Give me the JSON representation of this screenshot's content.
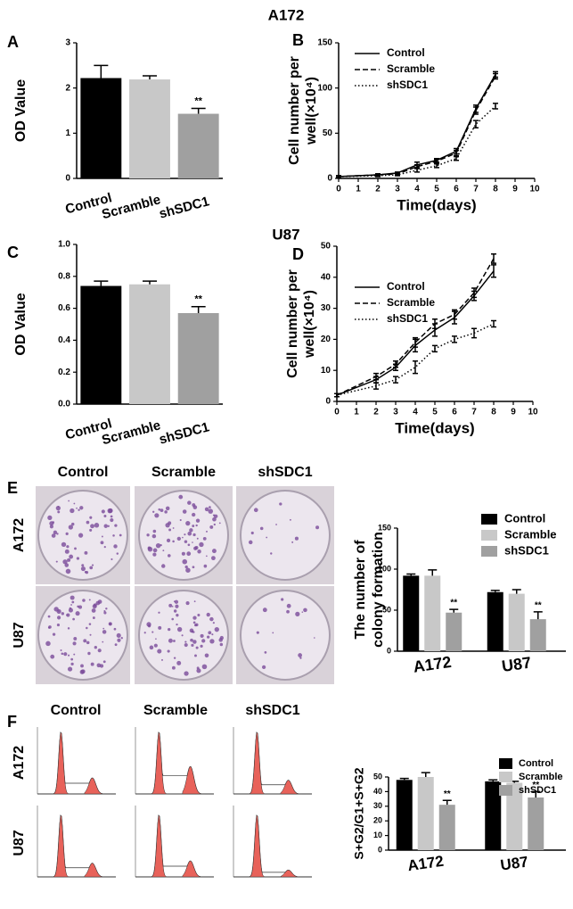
{
  "figure": {
    "sections": [
      "A172",
      "U87"
    ],
    "panel_labels": [
      "A",
      "B",
      "C",
      "D",
      "E",
      "F"
    ],
    "image_columns": [
      "Control",
      "Scramble",
      "shSDC1"
    ],
    "image_rows": [
      "A172",
      "U87"
    ]
  },
  "chart_data": [
    {
      "type": "bar",
      "ylabel": "OD Value",
      "categories": [
        "Control",
        "Scramble",
        "shSDC1"
      ],
      "colors": [
        "#000000",
        "#c8c8c8",
        "#a0a0a0"
      ],
      "values": [
        2.22,
        2.19,
        1.43
      ],
      "errors": [
        0.28,
        0.08,
        0.12
      ],
      "significance": [
        null,
        null,
        "**"
      ],
      "ylim": [
        0,
        3
      ],
      "yticks": [
        0,
        1,
        2,
        3
      ]
    },
    {
      "type": "line",
      "xlabel": "Time(days)",
      "ylabel": "Cell number per well(×10⁴)",
      "x": [
        0,
        2,
        3,
        4,
        5,
        6,
        7,
        8
      ],
      "legend": "upper left",
      "series": [
        {
          "name": "Control",
          "color": "#000000",
          "dash": "solid",
          "values": [
            2,
            4,
            6,
            15,
            20,
            30,
            77,
            115
          ],
          "errors": [
            1,
            1,
            1,
            3,
            2,
            3,
            4,
            3
          ]
        },
        {
          "name": "Scramble",
          "color": "#000000",
          "dash": "dashed",
          "values": [
            2,
            4,
            5,
            13,
            19,
            28,
            75,
            113
          ],
          "errors": [
            1,
            1,
            1,
            2,
            2,
            3,
            4,
            3
          ]
        },
        {
          "name": "shSDC1",
          "color": "#000000",
          "dash": "dotted",
          "values": [
            2,
            3,
            4,
            9,
            14,
            22,
            60,
            80
          ],
          "errors": [
            1,
            1,
            1,
            2,
            2,
            2,
            4,
            3
          ]
        }
      ],
      "xlim": [
        0,
        10
      ],
      "xticks": [
        0,
        1,
        2,
        3,
        4,
        5,
        6,
        7,
        8,
        9,
        10
      ],
      "ylim": [
        0,
        150
      ],
      "yticks": [
        0,
        50,
        100,
        150
      ]
    },
    {
      "type": "bar",
      "ylabel": "OD Value",
      "categories": [
        "Control",
        "Scramble",
        "shSDC1"
      ],
      "colors": [
        "#000000",
        "#c8c8c8",
        "#a0a0a0"
      ],
      "values": [
        0.74,
        0.75,
        0.57
      ],
      "errors": [
        0.03,
        0.02,
        0.04
      ],
      "significance": [
        null,
        null,
        "**"
      ],
      "ylim": [
        0,
        1
      ],
      "yticks": [
        {
          "value": 0,
          "label": "0.0"
        },
        0.2,
        0.4,
        0.6,
        0.8,
        {
          "value": 1,
          "label": "1.0"
        }
      ]
    },
    {
      "type": "line",
      "xlabel": "Time(days)",
      "ylabel": "Cell number per well(×10⁴)",
      "x": [
        0,
        2,
        3,
        4,
        5,
        6,
        7,
        8
      ],
      "legend": "upper left",
      "series": [
        {
          "name": "Control",
          "color": "#000000",
          "dash": "solid",
          "values": [
            2,
            7,
            11,
            18,
            23,
            27,
            34,
            42
          ],
          "errors": [
            0.5,
            1,
            1,
            2,
            2,
            2,
            1.5,
            2
          ]
        },
        {
          "name": "Scramble",
          "color": "#000000",
          "dash": "dashed",
          "values": [
            2,
            8,
            12,
            19,
            25,
            28,
            35,
            46
          ],
          "errors": [
            0.5,
            1,
            1,
            1.5,
            1.5,
            1.5,
            1.5,
            1.5
          ]
        },
        {
          "name": "shSDC1",
          "color": "#000000",
          "dash": "dotted",
          "values": [
            2,
            5,
            7,
            11,
            17,
            20,
            22,
            25
          ],
          "errors": [
            0.5,
            1,
            1,
            2,
            1,
            1,
            1.5,
            1
          ]
        }
      ],
      "xlim": [
        0,
        10
      ],
      "xticks": [
        0,
        1,
        2,
        3,
        4,
        5,
        6,
        7,
        8,
        9,
        10
      ],
      "ylim": [
        0,
        50
      ],
      "yticks": [
        0,
        10,
        20,
        30,
        40,
        50
      ]
    },
    {
      "type": "grouped_bar",
      "ylabel": [
        "The number of",
        "colony formation"
      ],
      "categories": [
        "A172",
        "U87"
      ],
      "legend": "upper right",
      "series": [
        {
          "name": "Control",
          "color": "#000000",
          "values": [
            92,
            72
          ],
          "errors": [
            2,
            2
          ],
          "significance": [
            null,
            null
          ]
        },
        {
          "name": "Scramble",
          "color": "#c8c8c8",
          "values": [
            92,
            70
          ],
          "errors": [
            7,
            5
          ],
          "significance": [
            null,
            null
          ]
        },
        {
          "name": "shSDC1",
          "color": "#a0a0a0",
          "values": [
            47,
            39
          ],
          "errors": [
            4,
            9
          ],
          "significance": [
            "**",
            "**"
          ]
        }
      ],
      "ylim": [
        0,
        150
      ],
      "yticks": [
        0,
        50,
        100,
        150
      ]
    },
    {
      "type": "grouped_bar",
      "ylabel": [
        "S+G2/G1+S+G2"
      ],
      "categories": [
        "A172",
        "U87"
      ],
      "legend": "upper right",
      "series": [
        {
          "name": "Control",
          "color": "#000000",
          "values": [
            48,
            47
          ],
          "errors": [
            1,
            1
          ],
          "significance": [
            null,
            null
          ]
        },
        {
          "name": "Scramble",
          "color": "#c8c8c8",
          "values": [
            50,
            46
          ],
          "errors": [
            3,
            1
          ],
          "significance": [
            null,
            null
          ]
        },
        {
          "name": "shSDC1",
          "color": "#a0a0a0",
          "values": [
            31,
            36
          ],
          "errors": [
            3,
            4
          ],
          "significance": [
            "**",
            "**"
          ]
        }
      ],
      "ylim": [
        0,
        50
      ],
      "yticks": [
        0,
        10,
        20,
        30,
        40,
        50
      ]
    }
  ]
}
